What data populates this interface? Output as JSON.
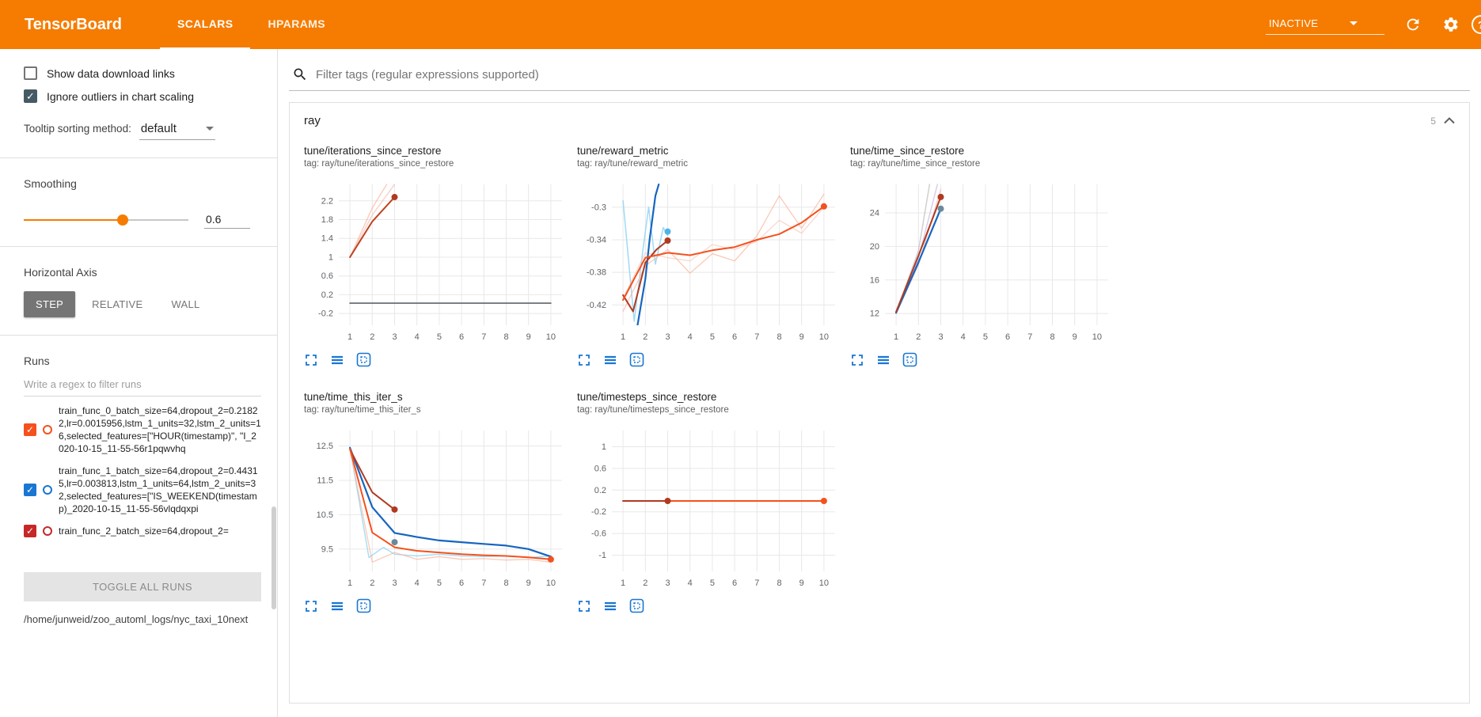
{
  "header": {
    "title": "TensorBoard",
    "tabs": [
      {
        "label": "SCALARS",
        "active": true
      },
      {
        "label": "HPARAMS",
        "active": false
      }
    ],
    "status_dropdown": "INACTIVE",
    "help_glyph": "?"
  },
  "sidebar": {
    "show_download": {
      "label": "Show data download links",
      "checked": false
    },
    "ignore_outliers": {
      "label": "Ignore outliers in chart scaling",
      "checked": true
    },
    "tooltip_sorting": {
      "label": "Tooltip sorting method:",
      "value": "default"
    },
    "smoothing": {
      "label": "Smoothing",
      "value": "0.6",
      "fraction": 0.6
    },
    "horizontal_axis": {
      "label": "Horizontal Axis",
      "options": [
        "STEP",
        "RELATIVE",
        "WALL"
      ],
      "active": "STEP"
    },
    "runs": {
      "label": "Runs",
      "filter_placeholder": "Write a regex to filter runs",
      "items": [
        {
          "name": "train_func_0_batch_size=64,dropout_2=0.21822,lr=0.0015956,lstm_1_units=32,lstm_2_units=16,selected_features=[\"HOUR(timestamp)\", \"I_2020-10-15_11-55-56r1pqwvhq",
          "color": "#f4511e",
          "checked": true
        },
        {
          "name": "train_func_1_batch_size=64,dropout_2=0.44315,lr=0.003813,lstm_1_units=64,lstm_2_units=32,selected_features=[\"IS_WEEKEND(timestamp)_2020-10-15_11-55-56vlqdqxpi",
          "color": "#1976d2",
          "checked": true
        },
        {
          "name": "train_func_2_batch_size=64,dropout_2=",
          "color": "#c62828",
          "checked": true
        }
      ],
      "toggle_all_label": "TOGGLE ALL RUNS",
      "log_path": "/home/junweid/zoo_automl_logs/nyc_taxi_10next"
    }
  },
  "main": {
    "filter_placeholder": "Filter tags (regular expressions supported)",
    "section": {
      "title": "ray",
      "count": "5"
    }
  },
  "chart_data": [
    {
      "type": "line",
      "title": "tune/iterations_since_restore",
      "tag": "tag: ray/tune/iterations_since_restore",
      "xlim": [
        0.5,
        10.5
      ],
      "ylim": [
        -0.45,
        2.55
      ],
      "x_ticks": [
        1,
        2,
        3,
        4,
        5,
        6,
        7,
        8,
        9,
        10
      ],
      "y_ticks": [
        -0.2,
        0.2,
        0.6,
        1,
        1.4,
        1.8,
        2.2
      ],
      "series": [
        {
          "name": "raw-a",
          "color": "#f8a68a",
          "opacity": 0.55,
          "width": 1.5,
          "points": [
            [
              1,
              1
            ],
            [
              2,
              2.05
            ],
            [
              2.65,
              2.55
            ]
          ]
        },
        {
          "name": "raw-b",
          "color": "#f2b8ad",
          "opacity": 0.6,
          "width": 1.5,
          "points": [
            [
              1,
              1
            ],
            [
              2,
              1.9
            ],
            [
              3,
              2.55
            ]
          ]
        },
        {
          "name": "constant-run",
          "color": "#5f6368",
          "opacity": 1,
          "width": 1.6,
          "points": [
            [
              1,
              0.02
            ],
            [
              10,
              0.02
            ]
          ]
        },
        {
          "name": "smoothed-red",
          "color": "#c0431f",
          "opacity": 1,
          "width": 2,
          "points": [
            [
              1,
              1
            ],
            [
              2,
              1.76
            ],
            [
              3,
              2.28
            ]
          ]
        }
      ],
      "dots": [
        {
          "x": 3,
          "y": 2.28,
          "color": "#b03a21"
        }
      ]
    },
    {
      "type": "line",
      "title": "tune/reward_metric",
      "tag": "tag: ray/tune/reward_metric",
      "xlim": [
        0.5,
        10.5
      ],
      "ylim": [
        -0.445,
        -0.272
      ],
      "x_ticks": [
        1,
        2,
        3,
        4,
        5,
        6,
        7,
        8,
        9,
        10
      ],
      "y_ticks": [
        -0.42,
        -0.38,
        -0.34,
        -0.3
      ],
      "series": [
        {
          "name": "raw-lightblue",
          "color": "#8ed4f5",
          "opacity": 0.85,
          "width": 1.5,
          "points": [
            [
              1,
              -0.292
            ],
            [
              1.5,
              -0.44
            ],
            [
              1.9,
              -0.35
            ],
            [
              2.15,
              -0.3
            ],
            [
              2.45,
              -0.37
            ],
            [
              2.8,
              -0.325
            ],
            [
              3,
              -0.335
            ]
          ]
        },
        {
          "name": "raw-orange-1",
          "color": "#f9b39a",
          "opacity": 0.75,
          "width": 1.2,
          "points": [
            [
              1,
              -0.428
            ],
            [
              2,
              -0.372
            ],
            [
              3,
              -0.352
            ],
            [
              4,
              -0.381
            ],
            [
              5,
              -0.357
            ],
            [
              6,
              -0.366
            ],
            [
              7,
              -0.335
            ],
            [
              8,
              -0.286
            ],
            [
              9,
              -0.326
            ],
            [
              10,
              -0.284
            ]
          ]
        },
        {
          "name": "raw-orange-2",
          "color": "#f6c3b4",
          "opacity": 0.7,
          "width": 1.2,
          "points": [
            [
              1,
              -0.412
            ],
            [
              2,
              -0.356
            ],
            [
              3,
              -0.362
            ],
            [
              4,
              -0.366
            ],
            [
              5,
              -0.346
            ],
            [
              6,
              -0.352
            ],
            [
              7,
              -0.342
            ],
            [
              8,
              -0.316
            ],
            [
              9,
              -0.332
            ],
            [
              10,
              -0.3
            ]
          ]
        },
        {
          "name": "smoothed-blue",
          "color": "#1565c0",
          "opacity": 1,
          "width": 2.2,
          "points": [
            [
              1.65,
              -0.445
            ],
            [
              2,
              -0.388
            ],
            [
              2.2,
              -0.338
            ],
            [
              2.45,
              -0.286
            ],
            [
              2.6,
              -0.272
            ]
          ]
        },
        {
          "name": "smoothed-darkred",
          "color": "#b03a21",
          "opacity": 1,
          "width": 2,
          "points": [
            [
              1,
              -0.408
            ],
            [
              1.45,
              -0.428
            ],
            [
              2,
              -0.368
            ],
            [
              2.5,
              -0.352
            ],
            [
              3,
              -0.341
            ]
          ]
        },
        {
          "name": "smoothed-orange",
          "color": "#f4511e",
          "opacity": 1,
          "width": 2,
          "points": [
            [
              1,
              -0.414
            ],
            [
              2,
              -0.362
            ],
            [
              3,
              -0.356
            ],
            [
              4,
              -0.359
            ],
            [
              5,
              -0.353
            ],
            [
              6,
              -0.349
            ],
            [
              7,
              -0.34
            ],
            [
              8,
              -0.333
            ],
            [
              9,
              -0.319
            ],
            [
              10,
              -0.299
            ]
          ]
        }
      ],
      "dots": [
        {
          "x": 3,
          "y": -0.341,
          "color": "#b03a21"
        },
        {
          "x": 3,
          "y": -0.33,
          "color": "#4fb3e8"
        },
        {
          "x": 10,
          "y": -0.299,
          "color": "#f4511e"
        }
      ]
    },
    {
      "type": "line",
      "title": "tune/time_since_restore",
      "tag": "tag: ray/tune/time_since_restore",
      "xlim": [
        0.5,
        10.5
      ],
      "ylim": [
        10.6,
        27.4
      ],
      "x_ticks": [
        1,
        2,
        3,
        4,
        5,
        6,
        7,
        8,
        9,
        10
      ],
      "y_ticks": [
        12,
        16,
        20,
        24
      ],
      "series": [
        {
          "name": "raw-gray",
          "color": "#b0b0b0",
          "opacity": 0.6,
          "width": 1.5,
          "points": [
            [
              1,
              12
            ],
            [
              2,
              19.5
            ],
            [
              2.5,
              27.4
            ]
          ]
        },
        {
          "name": "raw-lavender",
          "color": "#b9a6d8",
          "opacity": 0.55,
          "width": 1.5,
          "points": [
            [
              1,
              12
            ],
            [
              2,
              18.6
            ],
            [
              2.85,
              27.4
            ]
          ]
        },
        {
          "name": "raw-pink",
          "color": "#f0b2a6",
          "opacity": 0.6,
          "width": 1.5,
          "points": [
            [
              1,
              12
            ],
            [
              2,
              17.8
            ],
            [
              3,
              26.8
            ]
          ]
        },
        {
          "name": "smoothed-blue",
          "color": "#1565c0",
          "opacity": 1,
          "width": 2.2,
          "points": [
            [
              1,
              12.1
            ],
            [
              2,
              18.1
            ],
            [
              3,
              24.5
            ]
          ]
        },
        {
          "name": "smoothed-darkred",
          "color": "#b03a21",
          "opacity": 1,
          "width": 2,
          "points": [
            [
              1,
              12.2
            ],
            [
              2,
              18.9
            ],
            [
              3,
              25.9
            ]
          ]
        }
      ],
      "dots": [
        {
          "x": 3,
          "y": 25.9,
          "color": "#b03a21"
        },
        {
          "x": 3,
          "y": 24.5,
          "color": "#6a8a99"
        }
      ]
    },
    {
      "type": "line",
      "title": "tune/time_this_iter_s",
      "tag": "tag: ray/tune/time_this_iter_s",
      "xlim": [
        0.5,
        10.5
      ],
      "ylim": [
        8.85,
        12.95
      ],
      "x_ticks": [
        1,
        2,
        3,
        4,
        5,
        6,
        7,
        8,
        9,
        10
      ],
      "y_ticks": [
        9.5,
        10.5,
        11.5,
        12.5
      ],
      "series": [
        {
          "name": "raw-lightblue",
          "color": "#8ed4f5",
          "opacity": 0.8,
          "width": 1.4,
          "points": [
            [
              1,
              12.45
            ],
            [
              1.85,
              9.25
            ],
            [
              2.5,
              9.55
            ],
            [
              3,
              9.35
            ],
            [
              4,
              9.3
            ],
            [
              5,
              9.35
            ],
            [
              6,
              9.3
            ],
            [
              7,
              9.28
            ],
            [
              8,
              9.3
            ],
            [
              9,
              9.25
            ],
            [
              10,
              9.3
            ]
          ]
        },
        {
          "name": "raw-orange",
          "color": "#f9b39a",
          "opacity": 0.7,
          "width": 1.3,
          "points": [
            [
              1,
              12.4
            ],
            [
              2,
              9.12
            ],
            [
              3,
              9.4
            ],
            [
              4,
              9.2
            ],
            [
              5,
              9.28
            ],
            [
              6,
              9.2
            ],
            [
              7,
              9.22
            ],
            [
              8,
              9.18
            ],
            [
              9,
              9.2
            ],
            [
              10,
              9.12
            ]
          ]
        },
        {
          "name": "smoothed-blue",
          "color": "#1565c0",
          "opacity": 1,
          "width": 2.2,
          "points": [
            [
              1,
              12.45
            ],
            [
              2,
              10.72
            ],
            [
              3,
              9.97
            ],
            [
              4,
              9.85
            ],
            [
              5,
              9.75
            ],
            [
              6,
              9.7
            ],
            [
              7,
              9.65
            ],
            [
              8,
              9.6
            ],
            [
              9,
              9.5
            ],
            [
              10,
              9.28
            ]
          ]
        },
        {
          "name": "smoothed-darkred",
          "color": "#b03a21",
          "opacity": 1,
          "width": 2,
          "points": [
            [
              1,
              12.4
            ],
            [
              2,
              11.15
            ],
            [
              3,
              10.65
            ]
          ]
        },
        {
          "name": "smoothed-orange",
          "color": "#f4511e",
          "opacity": 1,
          "width": 2,
          "points": [
            [
              1,
              12.42
            ],
            [
              2,
              9.98
            ],
            [
              3,
              9.55
            ],
            [
              4,
              9.45
            ],
            [
              5,
              9.4
            ],
            [
              6,
              9.35
            ],
            [
              7,
              9.32
            ],
            [
              8,
              9.3
            ],
            [
              9,
              9.26
            ],
            [
              10,
              9.2
            ]
          ]
        }
      ],
      "dots": [
        {
          "x": 3,
          "y": 10.65,
          "color": "#b03a21"
        },
        {
          "x": 3,
          "y": 9.7,
          "color": "#6a8a99"
        },
        {
          "x": 10,
          "y": 9.2,
          "color": "#f4511e"
        }
      ]
    },
    {
      "type": "line",
      "title": "tune/timesteps_since_restore",
      "tag": "tag: ray/tune/timesteps_since_restore",
      "xlim": [
        0.5,
        10.5
      ],
      "ylim": [
        -1.3,
        1.3
      ],
      "x_ticks": [
        1,
        2,
        3,
        4,
        5,
        6,
        7,
        8,
        9,
        10
      ],
      "y_ticks": [
        -1,
        -0.6,
        -0.2,
        0.2,
        0.6,
        1
      ],
      "series": [
        {
          "name": "constant-gray",
          "color": "#757575",
          "opacity": 1,
          "width": 1.5,
          "points": [
            [
              1,
              0
            ],
            [
              10,
              0
            ]
          ]
        },
        {
          "name": "smoothed-orange",
          "color": "#f4511e",
          "opacity": 1,
          "width": 2,
          "points": [
            [
              1,
              0
            ],
            [
              10,
              0
            ]
          ]
        },
        {
          "name": "smoothed-darkred",
          "color": "#b03a21",
          "opacity": 1,
          "width": 2,
          "points": [
            [
              1,
              0
            ],
            [
              3,
              0
            ]
          ]
        }
      ],
      "dots": [
        {
          "x": 3,
          "y": 0,
          "color": "#b03a21"
        },
        {
          "x": 10,
          "y": 0,
          "color": "#f4511e"
        }
      ]
    }
  ]
}
